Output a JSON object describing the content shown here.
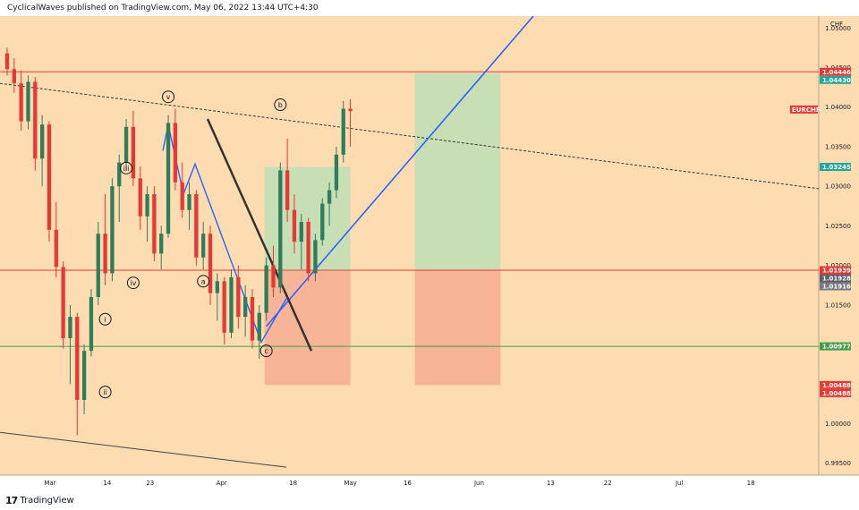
{
  "header": {
    "text": "CyclicalWaves published on TradingView.com, May 06, 2022 13:44 UTC+4:30"
  },
  "footer": {
    "logo": "17",
    "brand": "TradingView"
  },
  "colors": {
    "background": "#fcdcb0",
    "bull": "#2e7d5b",
    "bear": "#e53935",
    "resistance": "#e53935",
    "support": "#43a047",
    "blue_line": "#2962ff",
    "target_zone": "#b7dfb6",
    "stop_zone": "#f7a78f"
  },
  "chart_data": {
    "type": "candlestick",
    "symbol": "EURCHF",
    "currency_label": "CHF",
    "x_ticks": [
      "Mar",
      "14",
      "23",
      "Apr",
      "18",
      "May",
      "16",
      "Jun",
      "13",
      "22",
      "Jul",
      "18"
    ],
    "y_ticks": [
      "1.05000",
      "1.04500",
      "1.04000",
      "1.03500",
      "1.03000",
      "1.02500",
      "1.02000",
      "1.01500",
      "1.01000",
      "1.00500",
      "1.00000",
      "0.99500"
    ],
    "ylim": [
      0.9935,
      1.0515
    ],
    "horizontal_levels": [
      {
        "name": "resistance",
        "value": 1.04446
      },
      {
        "name": "support-mid",
        "value": 1.01939
      },
      {
        "name": "support-low",
        "value": 1.00977
      }
    ],
    "price_badges": [
      {
        "label": "1.04446",
        "value": 1.04446,
        "color": "#e53935"
      },
      {
        "label": "1.04430",
        "value": 1.0443,
        "color": "#26a69a"
      },
      {
        "label": "1.03245",
        "value": 1.03245,
        "color": "#26a69a"
      },
      {
        "label": "1.01939",
        "value": 1.01939,
        "color": "#e53935"
      },
      {
        "label": "1.01928",
        "value": 1.01928,
        "color": "#5d606b"
      },
      {
        "label": "1.01916",
        "value": 1.01916,
        "color": "#787b86"
      },
      {
        "label": "1.00977",
        "value": 1.00977,
        "color": "#43a047"
      },
      {
        "label": "1.00488",
        "value": 1.00488,
        "color": "#e53935"
      },
      {
        "label": "1.00488",
        "value": 1.00488,
        "color": "#e53935"
      }
    ],
    "symbol_badge": {
      "label": "EURCHF",
      "value": 1.0397
    },
    "wave_labels": [
      {
        "label": "v",
        "date_index": 23,
        "value": 1.0413
      },
      {
        "label": "b",
        "date_index": 39,
        "value": 1.0403
      },
      {
        "label": "iii",
        "date_index": 17,
        "value": 1.0323
      },
      {
        "label": "iv",
        "date_index": 18,
        "value": 1.0178
      },
      {
        "label": "a",
        "date_index": 28,
        "value": 1.018
      },
      {
        "label": "i",
        "date_index": 14,
        "value": 1.0132
      },
      {
        "label": "ii",
        "date_index": 14,
        "value": 1.004
      },
      {
        "label": "c",
        "date_index": 37,
        "value": 1.0092
      }
    ],
    "candles_ohlc": [
      [
        1.0468,
        1.0475,
        1.044,
        1.0448
      ],
      [
        1.0448,
        1.0462,
        1.0418,
        1.043
      ],
      [
        1.043,
        1.0446,
        1.037,
        1.0382
      ],
      [
        1.0382,
        1.044,
        1.0372,
        1.0432
      ],
      [
        1.0432,
        1.0438,
        1.032,
        1.0335
      ],
      [
        1.0335,
        1.039,
        1.03,
        1.0378
      ],
      [
        1.0378,
        1.0382,
        1.023,
        1.0245
      ],
      [
        1.0245,
        1.028,
        1.0185,
        1.0198
      ],
      [
        1.0198,
        1.0205,
        1.0095,
        1.0108
      ],
      [
        1.0108,
        1.015,
        1.005,
        1.0135
      ],
      [
        1.0135,
        1.014,
        0.9985,
        1.003
      ],
      [
        1.003,
        1.01,
        1.0012,
        1.0092
      ],
      [
        1.0092,
        1.017,
        1.0085,
        1.016
      ],
      [
        1.016,
        1.0255,
        1.015,
        1.024
      ],
      [
        1.024,
        1.029,
        1.0175,
        1.019
      ],
      [
        1.019,
        1.031,
        1.018,
        1.03
      ],
      [
        1.03,
        1.034,
        1.0255,
        1.033
      ],
      [
        1.033,
        1.0385,
        1.032,
        1.0375
      ],
      [
        1.0375,
        1.0395,
        1.03,
        1.031
      ],
      [
        1.031,
        1.0325,
        1.0245,
        1.0262
      ],
      [
        1.0262,
        1.03,
        1.023,
        1.029
      ],
      [
        1.029,
        1.03,
        1.0205,
        1.0215
      ],
      [
        1.0215,
        1.025,
        1.0195,
        1.024
      ],
      [
        1.024,
        1.039,
        1.0235,
        1.038
      ],
      [
        1.038,
        1.0398,
        1.0295,
        1.0305
      ],
      [
        1.0305,
        1.033,
        1.026,
        1.027
      ],
      [
        1.027,
        1.0305,
        1.0245,
        1.029
      ],
      [
        1.029,
        1.0295,
        1.02,
        1.021
      ],
      [
        1.021,
        1.0255,
        1.0195,
        1.024
      ],
      [
        1.024,
        1.025,
        1.015,
        1.0165
      ],
      [
        1.0165,
        1.019,
        1.013,
        1.018
      ],
      [
        1.018,
        1.0185,
        1.01,
        1.0115
      ],
      [
        1.0115,
        1.0195,
        1.0108,
        1.0185
      ],
      [
        1.0185,
        1.02,
        1.012,
        1.0135
      ],
      [
        1.0135,
        1.0175,
        1.011,
        1.016
      ],
      [
        1.016,
        1.017,
        1.0095,
        1.0105
      ],
      [
        1.0105,
        1.015,
        1.0082,
        1.014
      ],
      [
        1.014,
        1.021,
        1.013,
        1.02
      ],
      [
        1.02,
        1.0225,
        1.016,
        1.0172
      ],
      [
        1.0172,
        1.033,
        1.0165,
        1.032
      ],
      [
        1.032,
        1.036,
        1.0255,
        1.027
      ],
      [
        1.027,
        1.029,
        1.0215,
        1.023
      ],
      [
        1.023,
        1.0265,
        1.0195,
        1.0255
      ],
      [
        1.0255,
        1.026,
        1.018,
        1.019
      ],
      [
        1.019,
        1.024,
        1.018,
        1.0232
      ],
      [
        1.0232,
        1.0285,
        1.0225,
        1.0278
      ],
      [
        1.0278,
        1.0305,
        1.025,
        1.0295
      ],
      [
        1.0295,
        1.035,
        1.0285,
        1.034
      ],
      [
        1.034,
        1.0408,
        1.033,
        1.0398
      ],
      [
        1.0398,
        1.041,
        1.035,
        1.0395
      ]
    ],
    "x_tick_index": [
      6,
      14,
      20,
      30,
      40,
      48,
      56,
      66,
      76,
      84,
      94,
      104
    ],
    "total_slots": 114,
    "target_box": {
      "from_index": 57,
      "to_index": 69,
      "top": 1.0443,
      "bottom": 1.01939
    },
    "stop_box": {
      "from_index": 57,
      "to_index": 69,
      "top": 1.01939,
      "bottom": 1.00488
    },
    "old_target_box": {
      "from_index": 36,
      "to_index": 48,
      "top": 1.03245,
      "bottom": 1.01928
    },
    "old_stop_box": {
      "from_index": 36,
      "to_index": 48,
      "top": 1.01928,
      "bottom": 1.00488
    }
  }
}
